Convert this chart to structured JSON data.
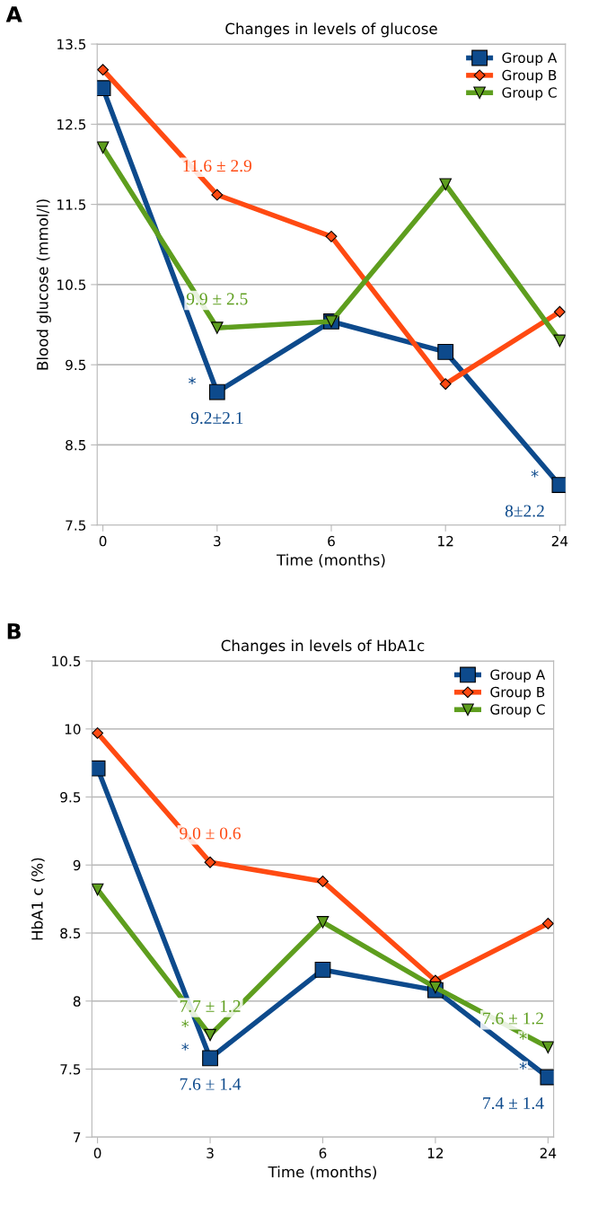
{
  "chart_data": [
    {
      "type": "line",
      "title": "Changes in levels of glucose",
      "xlabel": "Time (months)",
      "ylabel": "Blood glucose (mmol/l)",
      "categories": [
        "0",
        "3",
        "6",
        "12",
        "24"
      ],
      "ylim": [
        7.5,
        13.5
      ],
      "yticks": [
        7.5,
        8.5,
        9.5,
        10.5,
        11.5,
        12.5,
        13.5
      ],
      "grid": "y",
      "legend": "top right",
      "series": [
        {
          "name": "Group A",
          "color": "#0d4a8c",
          "marker": "square",
          "values": [
            12.95,
            9.16,
            10.04,
            9.66,
            8.0
          ]
        },
        {
          "name": "Group B",
          "color": "#ff4a12",
          "marker": "diamond",
          "values": [
            13.18,
            11.62,
            11.1,
            9.26,
            10.16
          ]
        },
        {
          "name": "Group C",
          "color": "#5e9e1e",
          "marker": "triangle",
          "values": [
            12.21,
            9.96,
            10.04,
            11.75,
            9.8
          ]
        }
      ],
      "annotations": [
        "A",
        {
          "text": "11.6 ± 2.9",
          "x": "3",
          "y": 11.62
        },
        {
          "text": "9.9 ± 2.5",
          "x": "3",
          "y": 9.96
        },
        {
          "text": "9.2±2.1",
          "x": "3",
          "y": 9.16
        },
        {
          "text": "8±2.2",
          "x": "24",
          "y": 8.0
        },
        {
          "text": "*",
          "x": "3",
          "y": 9.16
        },
        {
          "text": "*",
          "x": "24",
          "y": 8.0
        }
      ]
    },
    {
      "type": "line",
      "title": "Changes in levels of HbA1c",
      "xlabel": "Time (months)",
      "ylabel": "HbA1 c (%)",
      "categories": [
        "0",
        "3",
        "6",
        "12",
        "24"
      ],
      "ylim": [
        7,
        10.5
      ],
      "yticks": [
        7,
        7.5,
        8,
        8.5,
        9,
        9.5,
        10,
        10.5
      ],
      "grid": "y",
      "legend": "top right",
      "series": [
        {
          "name": "Group A",
          "color": "#0d4a8c",
          "marker": "square",
          "values": [
            9.71,
            7.58,
            8.23,
            8.08,
            7.44
          ]
        },
        {
          "name": "Group B",
          "color": "#ff4a12",
          "marker": "diamond",
          "values": [
            9.97,
            9.02,
            8.88,
            8.15,
            8.57
          ]
        },
        {
          "name": "Group C",
          "color": "#5e9e1e",
          "marker": "triangle",
          "values": [
            8.82,
            7.75,
            8.58,
            8.1,
            7.66
          ]
        }
      ],
      "annotations": [
        "B",
        {
          "text": "9.0 ± 0.6",
          "x": "3",
          "y": 9.02
        },
        {
          "text": "7.7 ± 1.2",
          "x": "3",
          "y": 7.75
        },
        {
          "text": "7.6 ± 1.4",
          "x": "3",
          "y": 7.58
        },
        {
          "text": "7.6 ± 1.2",
          "x": "24",
          "y": 7.66
        },
        {
          "text": "7.4 ± 1.4",
          "x": "24",
          "y": 7.44
        },
        {
          "text": "*",
          "x": "3",
          "y": 7.75
        },
        {
          "text": "*",
          "x": "3",
          "y": 7.58
        },
        {
          "text": "*",
          "x": "24",
          "y": 7.66
        },
        {
          "text": "*",
          "x": "24",
          "y": 7.44
        }
      ]
    }
  ]
}
